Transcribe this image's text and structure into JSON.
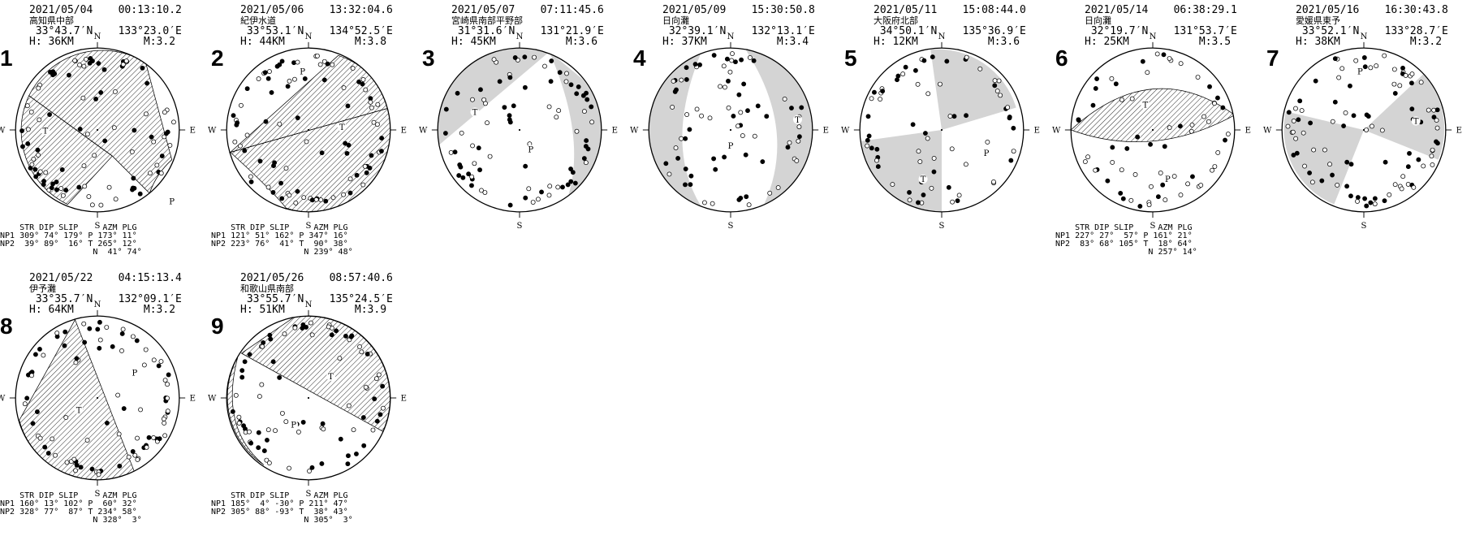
{
  "mechanisms": [
    {
      "num": "1",
      "date": "2021/05/04",
      "time": "00:13:10.2",
      "location": "高知県中部",
      "lat": "33°43.7′N",
      "lon": "133°23.0′E",
      "depth": "H: 36KM",
      "mag": "M:3.2",
      "nodal": [
        "NP1 309° 74° 179°",
        "NP2  39° 89°  16°"
      ],
      "axes": [
        "P 173° 11°",
        "T 265° 12°",
        "N  41° 74°"
      ]
    },
    {
      "num": "2",
      "date": "2021/05/06",
      "time": "13:32:04.6",
      "location": "紀伊水道",
      "lat": "33°53.1′N",
      "lon": "134°52.5′E",
      "depth": "H: 44KM",
      "mag": "M:3.8",
      "nodal": [
        "NP1 121° 51° 162°",
        "NP2 223° 76°  41°"
      ],
      "axes": [
        "P 347° 16°",
        "T  90° 38°",
        "N 239° 48°"
      ]
    },
    {
      "num": "3",
      "date": "2021/05/07",
      "time": "07:11:45.6",
      "location": "宮崎県南部平野部",
      "lat": "31°31.6′N",
      "lon": "131°21.9′E",
      "depth": "H: 45KM",
      "mag": "M:3.6",
      "nodal": [],
      "axes": []
    },
    {
      "num": "4",
      "date": "2021/05/09",
      "time": "15:30:50.8",
      "location": "日向灘",
      "lat": "32°39.1′N",
      "lon": "132°13.1′E",
      "depth": "H: 37KM",
      "mag": "M:3.4",
      "nodal": [],
      "axes": []
    },
    {
      "num": "5",
      "date": "2021/05/11",
      "time": "15:08:44.0",
      "location": "大阪府北部",
      "lat": "34°50.1′N",
      "lon": "135°36.9′E",
      "depth": "H: 12KM",
      "mag": "M:3.6",
      "nodal": [],
      "axes": []
    },
    {
      "num": "6",
      "date": "2021/05/14",
      "time": "06:38:29.1",
      "location": "日向灘",
      "lat": "32°19.7′N",
      "lon": "131°53.7′E",
      "depth": "H: 25KM",
      "mag": "M:3.5",
      "nodal": [
        "NP1 227° 27°  57°",
        "NP2  83° 68° 105°"
      ],
      "axes": [
        "P 161° 21°",
        "T  18° 64°",
        "N 257° 14°"
      ]
    },
    {
      "num": "7",
      "date": "2021/05/16",
      "time": "16:30:43.8",
      "location": "愛媛県東予",
      "lat": "33°52.1′N",
      "lon": "133°28.7′E",
      "depth": "H: 38KM",
      "mag": "M:3.2",
      "nodal": [],
      "axes": []
    },
    {
      "num": "8",
      "date": "2021/05/22",
      "time": "04:15:13.4",
      "location": "伊予灘",
      "lat": "33°35.7′N",
      "lon": "132°09.1′E",
      "depth": "H: 64KM",
      "mag": "M:3.2",
      "nodal": [
        "NP1 160° 13° 102°",
        "NP2 328° 77°  87°"
      ],
      "axes": [
        "P  60° 32°",
        "T 234° 58°",
        "N 328°  3°"
      ]
    },
    {
      "num": "9",
      "date": "2021/05/26",
      "time": "08:57:40.6",
      "location": "和歌山県南部",
      "lat": "33°55.7′N",
      "lon": "135°24.5′E",
      "depth": "H: 51KM",
      "mag": "M:3.9",
      "nodal": [
        "NP1 185°  4° -30°",
        "NP2 305° 88° -93°"
      ],
      "axes": [
        "P 211° 47°",
        "T  38° 43°",
        "N 305°  3°"
      ]
    }
  ],
  "table_header": "    STR DIP SLIP     AZM PLG",
  "compass": {
    "n": "N",
    "s": "S",
    "e": "E",
    "w": "W"
  },
  "axis_labels": {
    "p": "P",
    "t": "T"
  }
}
